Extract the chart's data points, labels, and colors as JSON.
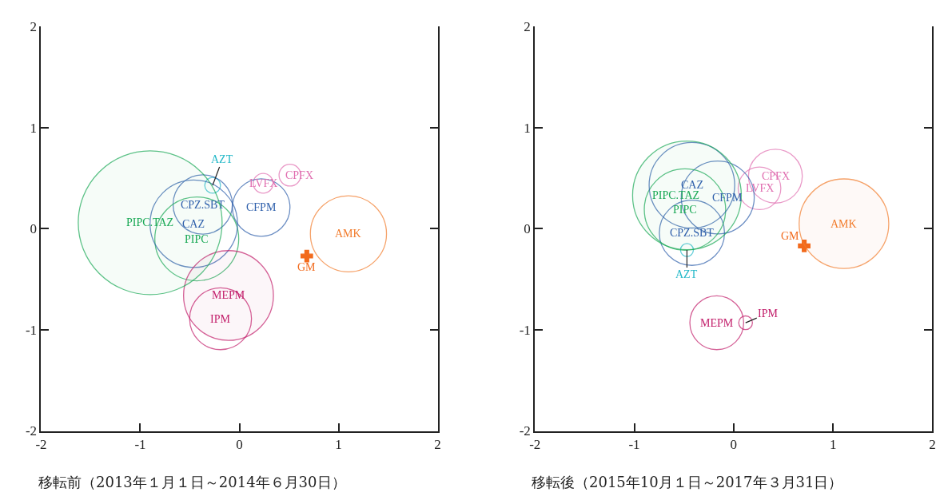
{
  "chart_data": [
    {
      "type": "bubble",
      "xlabel": "移転前（2013年１月１日～2014年６月30日）",
      "xlim": [
        -2,
        2
      ],
      "ylim": [
        -2,
        2
      ],
      "xticks": [
        -2,
        -1,
        0,
        1,
        2
      ],
      "yticks": [
        -2,
        -1,
        0,
        1,
        2
      ],
      "marker": "circle",
      "series": [
        {
          "name": "PIPC.TAZ",
          "color": "#1aa956",
          "x": [
            -0.9
          ],
          "values": [
            0.06
          ],
          "sizes": [
            1
          ]
        },
        {
          "name": "PIPC",
          "color": "#1aa956",
          "x": [
            -0.43
          ],
          "values": [
            -0.1
          ],
          "sizes": [
            0.34
          ]
        },
        {
          "name": "CAZ",
          "color": "#2e5fab",
          "x": [
            -0.46
          ],
          "values": [
            0.05
          ],
          "sizes": [
            0.37
          ]
        },
        {
          "name": "CPZ.SBT",
          "color": "#2e5fab",
          "x": [
            -0.37
          ],
          "values": [
            0.24
          ],
          "sizes": [
            0.17
          ]
        },
        {
          "name": "AZT",
          "color": "#22b8c8",
          "x": [
            -0.27
          ],
          "values": [
            0.43
          ],
          "sizes": [
            0.012
          ]
        },
        {
          "name": "CFPM",
          "color": "#2e5fab",
          "x": [
            0.22
          ],
          "values": [
            0.21
          ],
          "sizes": [
            0.16
          ]
        },
        {
          "name": "LVFX",
          "color": "#e06eb0",
          "x": [
            0.24
          ],
          "values": [
            0.45
          ],
          "sizes": [
            0.019
          ]
        },
        {
          "name": "CPFX",
          "color": "#e06eb0",
          "x": [
            0.51
          ],
          "values": [
            0.53
          ],
          "sizes": [
            0.023
          ]
        },
        {
          "name": "AMK",
          "color": "#f27c2c",
          "x": [
            1.1
          ],
          "values": [
            -0.05
          ],
          "sizes": [
            0.28
          ]
        },
        {
          "name": "MEPM",
          "color": "#c21d6a",
          "x": [
            -0.11
          ],
          "values": [
            -0.66
          ],
          "sizes": [
            0.39
          ]
        },
        {
          "name": "IPM",
          "color": "#c21d6a",
          "x": [
            -0.19
          ],
          "values": [
            -0.89
          ],
          "sizes": [
            0.185
          ]
        },
        {
          "name": "GM",
          "color": "#f26a1c",
          "type": "scatter",
          "marker": "cross",
          "x": [
            0.68
          ],
          "values": [
            -0.27
          ]
        }
      ]
    },
    {
      "type": "bubble",
      "xlabel": "移転後（2015年10月１日～2017年３月31日）",
      "xlim": [
        -2,
        2
      ],
      "ylim": [
        -2,
        2
      ],
      "xticks": [
        -2,
        -1,
        0,
        1,
        2
      ],
      "yticks": [
        -2,
        -1,
        0,
        1,
        2
      ],
      "marker": "circle",
      "series": [
        {
          "name": "PIPC.TAZ",
          "color": "#1aa956",
          "x": [
            -0.47
          ],
          "values": [
            0.33
          ],
          "sizes": [
            1
          ]
        },
        {
          "name": "PIPC",
          "color": "#1aa956",
          "x": [
            -0.49
          ],
          "values": [
            0.19
          ],
          "sizes": [
            0.56
          ]
        },
        {
          "name": "CAZ",
          "color": "#2e5fab",
          "x": [
            -0.42
          ],
          "values": [
            0.43
          ],
          "sizes": [
            0.62
          ]
        },
        {
          "name": "CPZ.SBT",
          "color": "#2e5fab",
          "x": [
            -0.42
          ],
          "values": [
            -0.04
          ],
          "sizes": [
            0.36
          ]
        },
        {
          "name": "AZT",
          "color": "#22b8c8",
          "x": [
            -0.47
          ],
          "values": [
            -0.21
          ],
          "sizes": [
            0.014
          ]
        },
        {
          "name": "CFPM",
          "color": "#2e5fab",
          "x": [
            -0.16
          ],
          "values": [
            0.31
          ],
          "sizes": [
            0.45
          ]
        },
        {
          "name": "LVFX",
          "color": "#e06eb0",
          "x": [
            0.26
          ],
          "values": [
            0.4
          ],
          "sizes": [
            0.154
          ]
        },
        {
          "name": "CPFX",
          "color": "#e06eb0",
          "x": [
            0.42
          ],
          "values": [
            0.52
          ],
          "sizes": [
            0.245
          ]
        },
        {
          "name": "AMK",
          "color": "#f27c2c",
          "x": [
            1.11
          ],
          "values": [
            0.05
          ],
          "sizes": [
            0.68
          ]
        },
        {
          "name": "MEPM",
          "color": "#c21d6a",
          "x": [
            -0.17
          ],
          "values": [
            -0.93
          ],
          "sizes": [
            0.245
          ]
        },
        {
          "name": "IPM",
          "color": "#c21d6a",
          "x": [
            0.12
          ],
          "values": [
            -0.93
          ],
          "sizes": [
            0.016
          ]
        },
        {
          "name": "GM",
          "color": "#f26a1c",
          "type": "scatter",
          "marker": "cross",
          "x": [
            0.71
          ],
          "values": [
            -0.17
          ]
        }
      ]
    }
  ]
}
